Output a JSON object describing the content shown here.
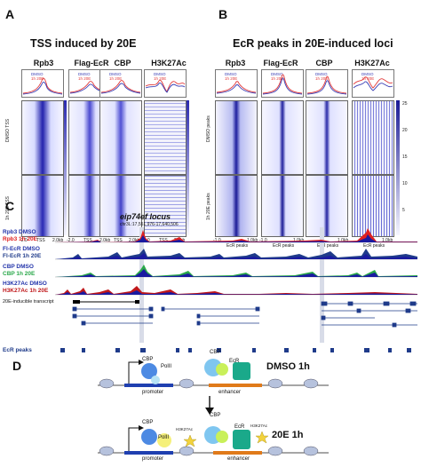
{
  "panels": {
    "A": {
      "letter": "A",
      "title": "TSS induced by 20E",
      "columns": [
        "Rpb3",
        "Flag-EcR",
        "CBP",
        "H3K27Ac"
      ],
      "legend": [
        "DMSO",
        "1h 20E"
      ],
      "row_labels": [
        "DMSO TSS",
        "1h 20E TSS"
      ],
      "x_ticks": [
        "-2.0",
        "TSS",
        "2.0kb"
      ],
      "colors": {
        "dmso": "#3a3fb5",
        "e20": "#e23a3a",
        "heat": "#2a2ab0"
      }
    },
    "B": {
      "letter": "B",
      "title": "EcR peaks in 20E-induced loci",
      "columns": [
        "Rpb3",
        "Flag-EcR",
        "CBP",
        "H3K27Ac"
      ],
      "legend": [
        "DMSO",
        "1h 20E"
      ],
      "row_labels": [
        "DMSO peaks",
        "1h 20E peaks"
      ],
      "x_ticks": [
        "-1.0",
        "EcR peaks",
        "1.0kb"
      ],
      "scale_ticks": [
        "25",
        "20",
        "15",
        "10",
        "5"
      ]
    },
    "C": {
      "letter": "C",
      "locus": "eip74ef locus",
      "coords": "chr3L:17,551,976-17,640,506",
      "tracks": [
        {
          "a": "Rpb3 DMSO",
          "b": "Rpb3 1h 20E",
          "colA": "#1a1aa0",
          "colB": "#e02020"
        },
        {
          "a": "Fl-EcR DMSO",
          "b": "Fl-EcR 1h 20E",
          "colA": "#1a1aa0",
          "colB": "#1f3b8a"
        },
        {
          "a": "CBP DMSO",
          "b": "CBP 1h 20E",
          "colA": "#1a1aa0",
          "colB": "#2aa84a"
        },
        {
          "a": "H3K27Ac DMSO",
          "b": "H3K27Ac 1h 20E",
          "colA": "#1a1aa0",
          "colB": "#c0181b"
        }
      ],
      "transcript_label": "20E-inducible transcript",
      "ecr_label": "EcR peaks"
    },
    "D": {
      "letter": "D",
      "top": {
        "condition": "DMSO 1h",
        "cbp": "CBP",
        "pol": "PolII",
        "ecr": "EcR",
        "promoter": "promoter",
        "enhancer": "enhancer"
      },
      "bottom": {
        "condition": "20E 1h",
        "cbp": "CBP",
        "pol": "PolII",
        "ecr": "EcR",
        "mark1": "H3K27Ac",
        "mark2": "H3K27Ac",
        "promoter": "promoter",
        "enhancer": "enhancer"
      }
    }
  }
}
